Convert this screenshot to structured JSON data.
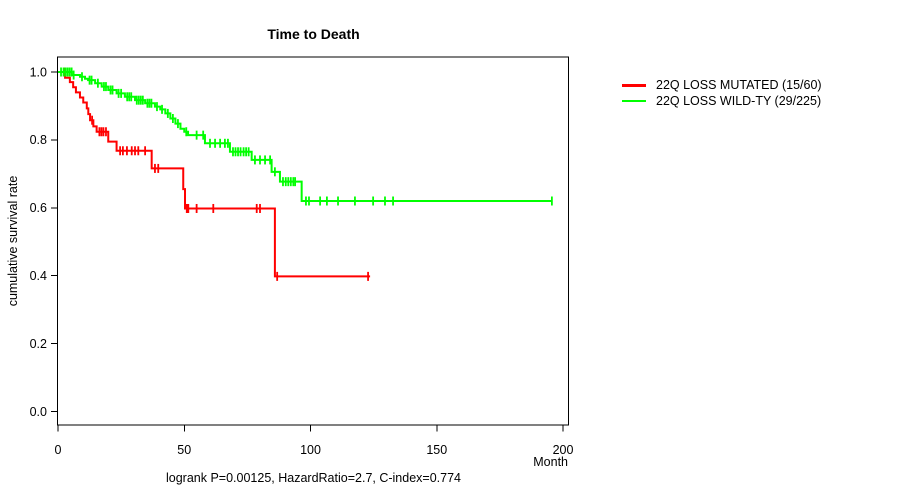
{
  "chart_data": {
    "type": "line",
    "subtype": "kaplan-meier-step",
    "title": "Time to Death",
    "xlabel": "Month",
    "ylabel": "cumulative survival rate",
    "annotation": "logrank P=0.00125, HazardRatio=2.7, C-index=0.774",
    "x_ticks": [
      0,
      50,
      100,
      150,
      200
    ],
    "y_ticks": [
      1.0,
      0.8,
      0.6,
      0.4,
      0.2,
      0.0
    ],
    "xlim": [
      0,
      202
    ],
    "ylim": [
      0,
      1.0
    ],
    "grid": false,
    "legend_position": "right-outside",
    "series": [
      {
        "name": "22Q LOSS MUTATED (15/60)",
        "color": "#ff0000",
        "events_total": "15/60",
        "points": [
          [
            0,
            1.0
          ],
          [
            2.8,
            0.983
          ],
          [
            4.7,
            0.97
          ],
          [
            6.0,
            0.955
          ],
          [
            7.1,
            0.94
          ],
          [
            8.7,
            0.925
          ],
          [
            10.0,
            0.91
          ],
          [
            11.4,
            0.893
          ],
          [
            12.0,
            0.876
          ],
          [
            12.7,
            0.858
          ],
          [
            14.0,
            0.84
          ],
          [
            15.3,
            0.824
          ],
          [
            19.9,
            0.795
          ],
          [
            23.2,
            0.768
          ],
          [
            37.1,
            0.716
          ],
          [
            49.6,
            0.655
          ],
          [
            50.3,
            0.598
          ],
          [
            85.9,
            0.398
          ]
        ],
        "end_time": 123.6,
        "censor_times": [
          2.4,
          13.5,
          16.4,
          17.2,
          18.0,
          19.0,
          24.6,
          25.7,
          27.3,
          29.2,
          30.5,
          31.8,
          34.5,
          38.4,
          39.7,
          51.0,
          51.6,
          54.9,
          61.5,
          78.7,
          80.0,
          86.8,
          122.8
        ]
      },
      {
        "name": "22Q LOSS WILD-TY (29/225)",
        "color": "#00ff00",
        "events_total": "29/225",
        "points": [
          [
            0,
            1.0
          ],
          [
            5.5,
            0.991
          ],
          [
            8.7,
            0.986
          ],
          [
            10.7,
            0.98
          ],
          [
            11.9,
            0.976
          ],
          [
            14.7,
            0.967
          ],
          [
            17.3,
            0.957
          ],
          [
            19.9,
            0.947
          ],
          [
            23.2,
            0.937
          ],
          [
            26.5,
            0.927
          ],
          [
            30.5,
            0.917
          ],
          [
            34.5,
            0.908
          ],
          [
            38.4,
            0.898
          ],
          [
            40.5,
            0.89
          ],
          [
            42.5,
            0.878
          ],
          [
            44.5,
            0.863
          ],
          [
            46.5,
            0.848
          ],
          [
            48.5,
            0.833
          ],
          [
            50.0,
            0.824
          ],
          [
            51.5,
            0.814
          ],
          [
            58.2,
            0.79
          ],
          [
            68.1,
            0.765
          ],
          [
            76.7,
            0.741
          ],
          [
            84.6,
            0.706
          ],
          [
            87.9,
            0.677
          ],
          [
            96.5,
            0.62
          ]
        ],
        "end_time": 195.6,
        "censor_times": [
          1.2,
          2.2,
          3.0,
          3.8,
          4.6,
          5.4,
          6.2,
          9.5,
          12.5,
          13.3,
          15.8,
          18.2,
          19.0,
          20.8,
          21.6,
          24.0,
          25.0,
          27.4,
          28.2,
          29.0,
          31.2,
          32.0,
          32.8,
          33.6,
          35.4,
          36.2,
          37.0,
          39.2,
          41.2,
          43.5,
          45.5,
          47.5,
          50.8,
          54.9,
          57.5,
          60.2,
          62.2,
          64.2,
          66.1,
          67.3,
          69.3,
          70.3,
          71.3,
          72.3,
          73.5,
          74.5,
          75.5,
          78.0,
          80.0,
          82.0,
          84.0,
          85.9,
          89.1,
          90.2,
          91.2,
          92.2,
          93.2,
          93.9,
          98.2,
          99.4,
          103.8,
          106.5,
          110.9,
          117.6,
          124.8,
          129.5,
          132.7,
          195.6
        ]
      }
    ]
  }
}
